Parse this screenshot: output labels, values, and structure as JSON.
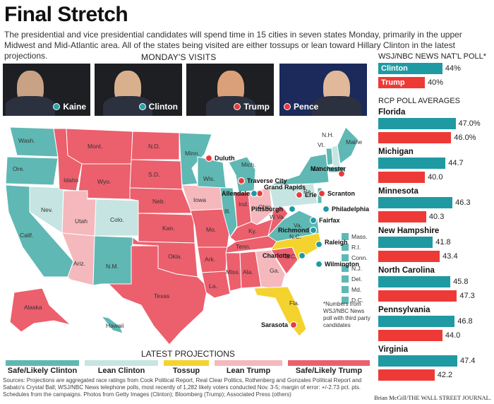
{
  "title": "Final Stretch",
  "intro": "The presidential and vice presidential candidates will spend time in 15 cities in seven states Monday, primarily in the upper Midwest and Mid-Atlantic area. All of the states being visited are either tossups or lean toward Hillary Clinton in the latest projections.",
  "visits_heading": "MONDAY'S VISITS",
  "photos": [
    {
      "name": "Kaine"
    },
    {
      "name": "Clinton"
    },
    {
      "name": "Trump"
    },
    {
      "name": "Pence"
    }
  ],
  "projections_heading": "LATEST PROJECTIONS",
  "legend": [
    {
      "label": "Safe/Likely Clinton",
      "color": "#5fb8b4"
    },
    {
      "label": "Lean Clinton",
      "color": "#c6e5e2"
    },
    {
      "label": "Tossup",
      "color": "#f4d32f"
    },
    {
      "label": "Lean Trump",
      "color": "#f5b8bd"
    },
    {
      "label": "Safe/Likely Trump",
      "color": "#ec5f6d"
    }
  ],
  "state_labels": [
    "Wash.",
    "Ore.",
    "Calif.",
    "Nev.",
    "Idaho",
    "Mont.",
    "Wyo.",
    "Utah",
    "Colo.",
    "Ariz.",
    "N.M.",
    "N.D.",
    "S.D.",
    "Neb.",
    "Kan.",
    "Okla.",
    "Texas",
    "Minn.",
    "Iowa",
    "Mo.",
    "Ark.",
    "La.",
    "Wis.",
    "Ill.",
    "Mich.",
    "Ind.",
    "Ohio",
    "Ky.",
    "Tenn.",
    "Miss.",
    "Ala.",
    "Ga.",
    "Fla.",
    "S.C.",
    "N.C.",
    "Va.",
    "W.Va.",
    "Pa.",
    "N.Y.",
    "Vt.",
    "N.H.",
    "Maine",
    "Alaska",
    "Hawaii"
  ],
  "small_states": [
    "Mass.",
    "R.I.",
    "Conn.",
    "N.J.",
    "Del.",
    "Md.",
    "D.C."
  ],
  "cities": [
    "Duluth",
    "Traverse City",
    "Grand Rapids",
    "Allendale",
    "Erie",
    "Manchester",
    "Scranton",
    "Pittsburgh",
    "Philadelphia",
    "Fairfax",
    "Richmond",
    "Raleigh",
    "Charlotte",
    "Wilmington",
    "Sarasota"
  ],
  "footnote": "*Numbers from WSJ/NBC News poll with third party candidates",
  "sources": "Sources: Projections are aggregated race ratings from Cook Political Report, Real Clear Politics, Rothenberg and Gonzales Political Report and Sabato's Crystal Ball; WSJ/NBC News telephone polls, most recently of 1,282 likely voters conducted Nov. 3-5; margin of error: +/-2.73 pct. pts. Schedules from the campaigns. Photos from Getty Images (Clinton); Bloomberg (Trump); Associated Press (others)",
  "credit": "Brian McGill/THE WALL STREET JOURNAL.",
  "national_poll": {
    "heading": "WSJ/NBC NEWS NAT'L POLL*",
    "clinton_label": "Clinton",
    "clinton_value": 44,
    "clinton_text": "44%",
    "trump_label": "Trump",
    "trump_value": 40,
    "trump_text": "40%"
  },
  "rcp": {
    "heading": "RCP POLL AVERAGES",
    "states": [
      {
        "name": "Florida",
        "clinton": 47.0,
        "clinton_text": "47.0%",
        "trump": 46.0,
        "trump_text": "46.0%"
      },
      {
        "name": "Michigan",
        "clinton": 44.7,
        "clinton_text": "44.7",
        "trump": 40.0,
        "trump_text": "40.0"
      },
      {
        "name": "Minnesota",
        "clinton": 46.3,
        "clinton_text": "46.3",
        "trump": 40.3,
        "trump_text": "40.3"
      },
      {
        "name": "New Hampshire",
        "clinton": 41.8,
        "clinton_text": "41.8",
        "trump": 43.4,
        "trump_text": "43.4"
      },
      {
        "name": "North Carolina",
        "clinton": 45.8,
        "clinton_text": "45.8",
        "trump": 47.3,
        "trump_text": "47.3"
      },
      {
        "name": "Pennsylvania",
        "clinton": 46.8,
        "clinton_text": "46.8",
        "trump": 44.0,
        "trump_text": "44.0"
      },
      {
        "name": "Virginia",
        "clinton": 47.4,
        "clinton_text": "47.4",
        "trump": 42.2,
        "trump_text": "42.2"
      }
    ]
  }
}
